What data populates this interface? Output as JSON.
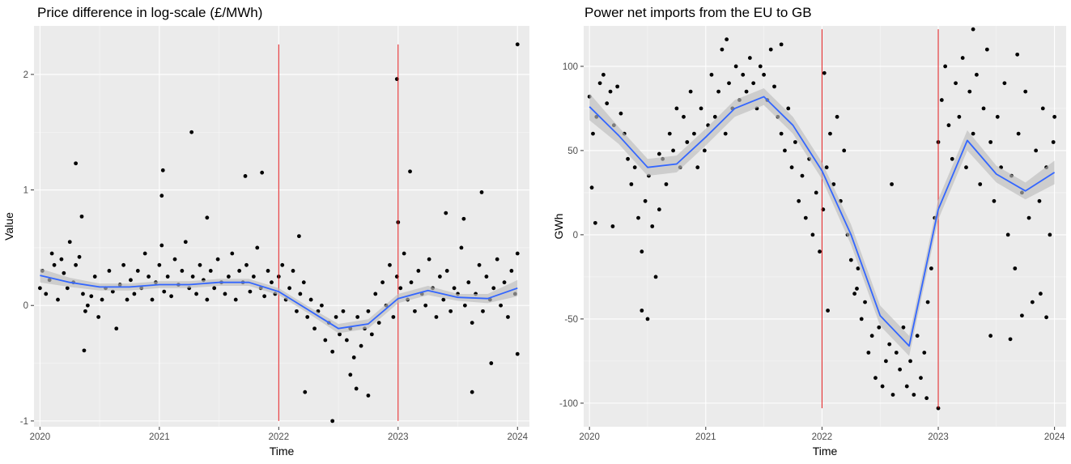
{
  "chart_data": [
    {
      "type": "scatter",
      "title": "Price difference in log-scale (£/MWh)",
      "xlabel": "Time",
      "ylabel": "Value",
      "x_range": [
        2019.95,
        2024.1
      ],
      "ylim": [
        -1.05,
        2.42
      ],
      "x_ticks": [
        2020,
        2021,
        2022,
        2023,
        2024
      ],
      "x_tick_labels": [
        "2020",
        "2021",
        "2022",
        "2023",
        "2024"
      ],
      "y_ticks": [
        -1,
        0,
        1,
        2
      ],
      "y_tick_labels": [
        "-1",
        "0",
        "1",
        "2"
      ],
      "vertical_lines": {
        "x": [
          2022,
          2023
        ],
        "ylim": [
          -1,
          2.26
        ],
        "color": "#e41a1c"
      },
      "smooth": {
        "color": "#3366ff",
        "band_color": "#bdbdbd",
        "x": [
          2020.0,
          2020.25,
          2020.5,
          2020.75,
          2021.0,
          2021.25,
          2021.5,
          2021.75,
          2022.0,
          2022.25,
          2022.5,
          2022.75,
          2023.0,
          2023.25,
          2023.5,
          2023.75,
          2024.0
        ],
        "y": [
          0.26,
          0.2,
          0.16,
          0.16,
          0.18,
          0.18,
          0.2,
          0.2,
          0.12,
          -0.04,
          -0.2,
          -0.16,
          0.06,
          0.13,
          0.07,
          0.06,
          0.15
        ],
        "band": [
          0.06,
          0.04,
          0.03,
          0.03,
          0.03,
          0.03,
          0.03,
          0.03,
          0.03,
          0.03,
          0.04,
          0.04,
          0.04,
          0.04,
          0.03,
          0.04,
          0.07
        ]
      },
      "points": {
        "color": "#000000",
        "x": [
          2020.0,
          2020.02,
          2020.05,
          2020.08,
          2020.1,
          2020.12,
          2020.15,
          2020.18,
          2020.2,
          2020.23,
          2020.25,
          2020.28,
          2020.3,
          2020.33,
          2020.36,
          2020.38,
          2020.4,
          2020.43,
          2020.46,
          2020.49,
          2020.52,
          2020.55,
          2020.58,
          2020.61,
          2020.64,
          2020.67,
          2020.7,
          2020.73,
          2020.76,
          2020.79,
          2020.82,
          2020.85,
          2020.88,
          2020.91,
          2020.94,
          2020.97,
          2021.0,
          2021.02,
          2021.04,
          2021.07,
          2021.1,
          2021.13,
          2021.16,
          2021.19,
          2021.22,
          2021.25,
          2021.28,
          2021.31,
          2021.34,
          2021.37,
          2021.4,
          2021.43,
          2021.46,
          2021.49,
          2021.52,
          2021.55,
          2021.58,
          2021.61,
          2021.64,
          2021.67,
          2021.7,
          2021.73,
          2021.76,
          2021.79,
          2021.82,
          2021.85,
          2021.88,
          2021.91,
          2021.94,
          2021.97,
          2022.0,
          2022.03,
          2022.06,
          2022.09,
          2022.12,
          2022.15,
          2022.18,
          2022.21,
          2022.24,
          2022.27,
          2022.3,
          2022.33,
          2022.36,
          2022.39,
          2022.42,
          2022.45,
          2022.48,
          2022.51,
          2022.54,
          2022.57,
          2022.6,
          2022.63,
          2022.66,
          2022.69,
          2022.72,
          2022.75,
          2022.78,
          2022.81,
          2022.84,
          2022.87,
          2022.9,
          2022.93,
          2022.96,
          2022.99,
          2023.02,
          2023.05,
          2023.08,
          2023.11,
          2023.14,
          2023.17,
          2023.2,
          2023.23,
          2023.26,
          2023.29,
          2023.32,
          2023.35,
          2023.38,
          2023.41,
          2023.44,
          2023.47,
          2023.5,
          2023.53,
          2023.56,
          2023.59,
          2023.62,
          2023.65,
          2023.68,
          2023.71,
          2023.74,
          2023.77,
          2023.8,
          2023.83,
          2023.86,
          2023.89,
          2023.92,
          2023.95,
          2023.98,
          2024.0,
          2020.3,
          2021.27,
          2021.03,
          2021.72,
          2021.86,
          2022.99,
          2023.0,
          2024.0,
          2023.1,
          2022.45,
          2022.22,
          2023.55,
          2023.7,
          2023.78,
          2024.0,
          2022.75,
          2022.65,
          2020.35,
          2020.37,
          2021.02,
          2021.4,
          2022.17,
          2023.4,
          2023.62,
          2022.6
        ],
        "y": [
          0.15,
          0.3,
          0.1,
          0.22,
          0.45,
          0.35,
          0.05,
          0.4,
          0.28,
          0.15,
          0.55,
          0.2,
          0.35,
          0.42,
          0.1,
          -0.05,
          0.0,
          0.08,
          0.25,
          -0.1,
          0.05,
          0.15,
          0.3,
          0.12,
          -0.2,
          0.18,
          0.35,
          0.05,
          0.22,
          0.1,
          0.3,
          0.15,
          0.45,
          0.25,
          0.05,
          0.2,
          0.35,
          0.52,
          0.12,
          0.25,
          0.08,
          0.4,
          0.18,
          0.3,
          0.55,
          0.15,
          0.25,
          0.1,
          0.35,
          0.22,
          0.05,
          0.3,
          0.15,
          0.4,
          0.2,
          0.1,
          0.25,
          0.45,
          0.05,
          0.3,
          0.2,
          0.35,
          0.12,
          0.25,
          0.5,
          0.15,
          0.08,
          0.3,
          0.2,
          0.1,
          0.25,
          0.35,
          0.05,
          0.15,
          0.3,
          -0.05,
          0.1,
          0.2,
          -0.1,
          0.05,
          -0.2,
          -0.05,
          0.0,
          -0.3,
          -0.15,
          -0.4,
          -0.1,
          -0.25,
          -0.05,
          -0.3,
          -0.2,
          -0.45,
          -0.1,
          -0.35,
          -0.2,
          -0.05,
          -0.25,
          0.1,
          -0.15,
          0.2,
          0.0,
          0.35,
          -0.1,
          0.25,
          0.15,
          0.45,
          0.05,
          0.2,
          -0.05,
          0.3,
          0.1,
          0.0,
          0.4,
          0.15,
          -0.1,
          0.25,
          0.05,
          0.3,
          -0.05,
          0.15,
          0.1,
          0.5,
          0.0,
          0.2,
          -0.15,
          0.1,
          0.35,
          -0.05,
          0.25,
          0.05,
          0.15,
          0.4,
          0.0,
          0.2,
          -0.1,
          0.3,
          0.1,
          0.45,
          1.23,
          1.5,
          1.17,
          1.12,
          1.15,
          1.96,
          0.72,
          2.26,
          1.16,
          -1.0,
          -0.75,
          0.75,
          0.98,
          -0.5,
          -0.42,
          -0.78,
          -0.72,
          0.77,
          -0.39,
          0.95,
          0.76,
          0.6,
          0.8,
          -0.75,
          -0.6
        ]
      }
    },
    {
      "type": "scatter",
      "title": "Power net imports from the EU to GB",
      "xlabel": "Time",
      "ylabel": "GWh",
      "x_range": [
        2019.95,
        2024.1
      ],
      "ylim": [
        -114,
        124
      ],
      "x_ticks": [
        2020,
        2021,
        2022,
        2023,
        2024
      ],
      "x_tick_labels": [
        "2020",
        "2021",
        "2022",
        "2023",
        "2024"
      ],
      "y_ticks": [
        -100,
        -50,
        0,
        50,
        100
      ],
      "y_tick_labels": [
        "-100",
        "-50",
        "0",
        "50",
        "100"
      ],
      "vertical_lines": {
        "x": [
          2022,
          2023
        ],
        "ylim": [
          -103,
          122
        ],
        "color": "#e41a1c"
      },
      "smooth": {
        "color": "#3366ff",
        "band_color": "#bdbdbd",
        "x": [
          2020.0,
          2020.25,
          2020.5,
          2020.75,
          2021.0,
          2021.25,
          2021.5,
          2021.75,
          2022.0,
          2022.25,
          2022.5,
          2022.75,
          2023.0,
          2023.25,
          2023.5,
          2023.75,
          2024.0
        ],
        "y": [
          76,
          59,
          40,
          42,
          58,
          75,
          82,
          65,
          38,
          0,
          -48,
          -66,
          15,
          56,
          36,
          26,
          37
        ],
        "band": [
          8,
          5,
          5,
          5,
          5,
          5,
          5,
          5,
          5,
          6,
          6,
          6,
          6,
          6,
          5,
          5,
          7
        ]
      },
      "points": {
        "color": "#000000",
        "x": [
          2020.0,
          2020.03,
          2020.06,
          2020.09,
          2020.12,
          2020.15,
          2020.18,
          2020.21,
          2020.24,
          2020.27,
          2020.3,
          2020.33,
          2020.36,
          2020.39,
          2020.42,
          2020.45,
          2020.48,
          2020.51,
          2020.54,
          2020.57,
          2020.6,
          2020.63,
          2020.66,
          2020.69,
          2020.72,
          2020.75,
          2020.78,
          2020.81,
          2020.84,
          2020.87,
          2020.9,
          2020.93,
          2020.96,
          2020.99,
          2021.02,
          2021.05,
          2021.08,
          2021.11,
          2021.14,
          2021.17,
          2021.2,
          2021.23,
          2021.26,
          2021.29,
          2021.32,
          2021.35,
          2021.38,
          2021.41,
          2021.44,
          2021.47,
          2021.5,
          2021.53,
          2021.56,
          2021.59,
          2021.62,
          2021.65,
          2021.68,
          2021.71,
          2021.74,
          2021.77,
          2021.8,
          2021.83,
          2021.86,
          2021.89,
          2021.92,
          2021.95,
          2021.98,
          2022.01,
          2022.04,
          2022.07,
          2022.1,
          2022.13,
          2022.16,
          2022.19,
          2022.22,
          2022.25,
          2022.28,
          2022.31,
          2022.34,
          2022.37,
          2022.4,
          2022.43,
          2022.46,
          2022.49,
          2022.52,
          2022.55,
          2022.58,
          2022.61,
          2022.64,
          2022.67,
          2022.7,
          2022.73,
          2022.76,
          2022.79,
          2022.82,
          2022.85,
          2022.88,
          2022.91,
          2022.94,
          2022.97,
          2023.0,
          2023.03,
          2023.06,
          2023.09,
          2023.12,
          2023.15,
          2023.18,
          2023.21,
          2023.24,
          2023.27,
          2023.3,
          2023.33,
          2023.36,
          2023.39,
          2023.42,
          2023.45,
          2023.48,
          2023.51,
          2023.54,
          2023.57,
          2023.6,
          2023.63,
          2023.66,
          2023.69,
          2023.72,
          2023.75,
          2023.78,
          2023.81,
          2023.84,
          2023.87,
          2023.9,
          2023.93,
          2023.96,
          2023.99,
          2020.02,
          2020.05,
          2020.45,
          2020.5,
          2021.18,
          2021.65,
          2022.02,
          2022.05,
          2022.3,
          2022.6,
          2022.9,
          2023.0,
          2023.3,
          2023.45,
          2023.62,
          2023.68,
          2023.72,
          2023.88,
          2023.93,
          2024.0,
          2020.2,
          2020.6
        ],
        "y": [
          82,
          60,
          70,
          90,
          95,
          78,
          85,
          65,
          88,
          72,
          60,
          45,
          30,
          40,
          10,
          -10,
          20,
          35,
          5,
          -25,
          15,
          45,
          30,
          60,
          50,
          75,
          40,
          70,
          55,
          85,
          60,
          40,
          75,
          50,
          65,
          95,
          70,
          85,
          110,
          60,
          90,
          75,
          100,
          80,
          95,
          85,
          105,
          90,
          75,
          100,
          95,
          80,
          110,
          88,
          70,
          60,
          50,
          75,
          40,
          55,
          20,
          35,
          10,
          45,
          0,
          25,
          -10,
          15,
          40,
          60,
          30,
          70,
          20,
          50,
          0,
          -15,
          -35,
          -20,
          -50,
          -40,
          -70,
          -60,
          -85,
          -55,
          -90,
          -75,
          -65,
          -95,
          -70,
          -80,
          -55,
          -90,
          -75,
          -95,
          -60,
          -85,
          -70,
          -40,
          -20,
          10,
          55,
          80,
          100,
          65,
          45,
          90,
          70,
          105,
          40,
          85,
          60,
          95,
          30,
          75,
          110,
          55,
          20,
          70,
          40,
          90,
          0,
          35,
          -20,
          60,
          25,
          85,
          10,
          -40,
          50,
          20,
          75,
          40,
          0,
          55,
          28,
          7,
          -45,
          -50,
          116,
          113,
          96,
          -45,
          -32,
          30,
          -97,
          -103,
          122,
          -60,
          -62,
          107,
          -48,
          -35,
          -49,
          70,
          5,
          48
        ]
      }
    }
  ]
}
